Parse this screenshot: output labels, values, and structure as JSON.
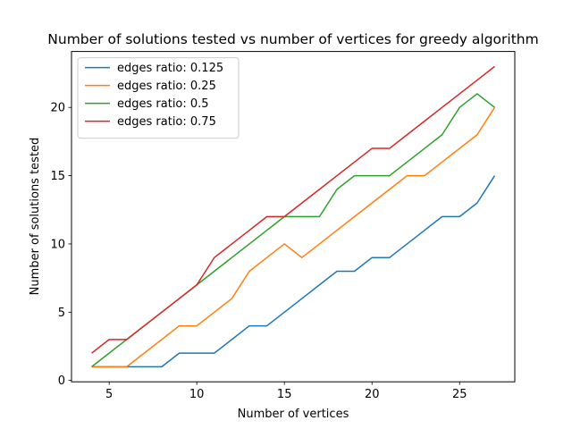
{
  "chart_data": {
    "type": "line",
    "title": "Number of solutions tested vs number of vertices for greedy algorithm",
    "xlabel": "Number of vertices",
    "ylabel": "Number of solutions tested",
    "xlim": [
      2.85,
      28.15
    ],
    "ylim": [
      -0.1,
      24.1
    ],
    "xticks": [
      5,
      10,
      15,
      20,
      25
    ],
    "yticks": [
      0,
      5,
      10,
      15,
      20
    ],
    "grid": false,
    "legend_position": "top-left",
    "x": [
      4,
      5,
      6,
      7,
      8,
      9,
      10,
      11,
      12,
      13,
      14,
      15,
      16,
      17,
      18,
      19,
      20,
      21,
      22,
      23,
      24,
      25,
      26,
      27
    ],
    "series": [
      {
        "name": "edges ratio: 0.125",
        "color": "#1f77b4",
        "values": [
          1,
          1,
          1,
          1,
          1,
          2,
          2,
          2,
          3,
          4,
          4,
          5,
          6,
          7,
          8,
          8,
          9,
          9,
          10,
          11,
          12,
          12,
          13,
          15
        ]
      },
      {
        "name": "edges ratio: 0.25",
        "color": "#ff7f0e",
        "values": [
          1,
          1,
          1,
          2,
          3,
          4,
          4,
          5,
          6,
          8,
          9,
          10,
          9,
          10,
          11,
          12,
          13,
          14,
          15,
          15,
          16,
          17,
          18,
          20
        ]
      },
      {
        "name": "edges ratio: 0.5",
        "color": "#2ca02c",
        "values": [
          1,
          2,
          3,
          4,
          5,
          6,
          7,
          8,
          9,
          10,
          11,
          12,
          12,
          12,
          14,
          15,
          15,
          15,
          16,
          17,
          18,
          20,
          21,
          20
        ]
      },
      {
        "name": "edges ratio: 0.75",
        "color": "#d62728",
        "values": [
          2,
          3,
          3,
          4,
          5,
          6,
          7,
          9,
          10,
          11,
          12,
          12,
          13,
          14,
          15,
          16,
          17,
          17,
          18,
          19,
          20,
          21,
          22,
          23
        ]
      }
    ]
  }
}
